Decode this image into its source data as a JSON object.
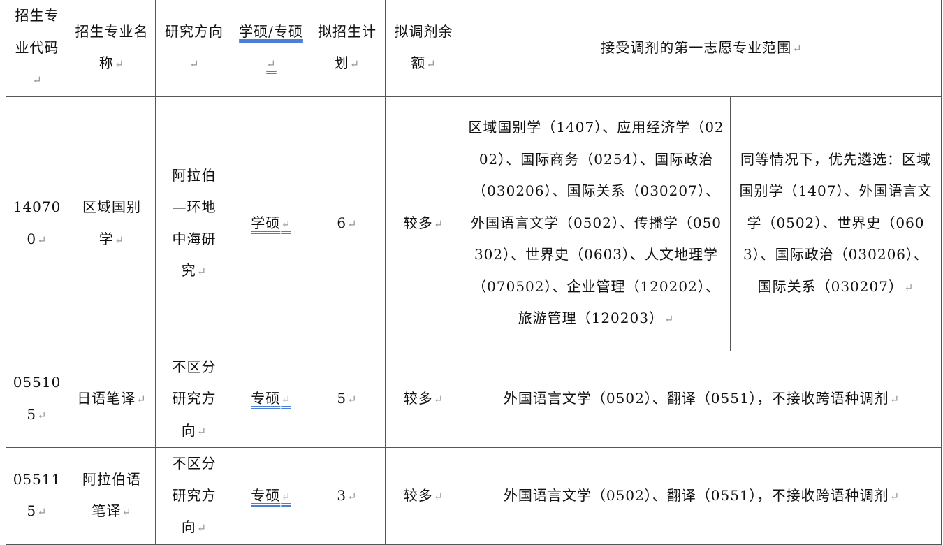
{
  "table": {
    "headers": [
      "招生专业代码",
      "招生专业名称",
      "研究方向",
      "学硕/专硕",
      "拟招生计划",
      "拟调剂余额",
      "接受调剂的第一志愿专业范围"
    ],
    "rows": [
      {
        "code": "140700",
        "name": "区域国别学",
        "direction": "阿拉伯—环地中海研究",
        "type": "学硕",
        "plan": "6",
        "remaining": "较多",
        "scope": "区域国别学（1407）、应用经济学（0202）、国际商务（0254）、国际政治（030206）、国际关系（030207）、外国语言文学（0502）、传播学（050302）、世界史（0603）、人文地理学（070502）、企业管理（120202）、旅游管理（120203）",
        "priority": "同等情况下，优先遴选：区域国别学（1407）、外国语言文学（0502）、世界史（0603）、国际政治（030206）、国际关系（030207）"
      },
      {
        "code": "055105",
        "name": "日语笔译",
        "direction": "不区分研究方向",
        "type": "专硕",
        "plan": "5",
        "remaining": "较多",
        "scope": "外国语言文学（0502）、翻译（0551），不接收跨语种调剂"
      },
      {
        "code": "055115",
        "name": "阿拉伯语笔译",
        "direction": "不区分研究方向",
        "type": "专硕",
        "plan": "3",
        "remaining": "较多",
        "scope": "外国语言文学（0502）、翻译（0551），不接收跨语种调剂"
      }
    ]
  }
}
